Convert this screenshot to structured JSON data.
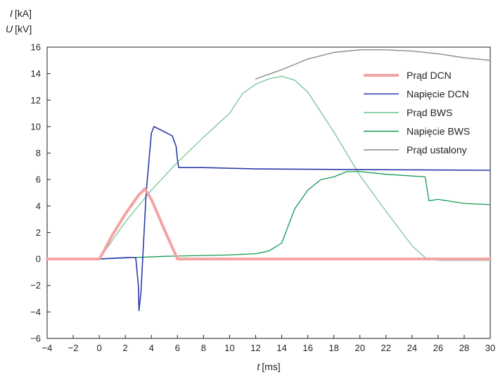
{
  "chart_data": {
    "type": "line",
    "title": "",
    "xlabel": "t [ms]",
    "xlabel_var": "t",
    "xlabel_unit": "[ms]",
    "ylabel_lines": [
      "I [kA]",
      "U [kV]"
    ],
    "ylabel_vars": [
      "I",
      "U"
    ],
    "ylabel_units": [
      "[kA]",
      "[kV]"
    ],
    "xlim": [
      -4,
      30
    ],
    "ylim": [
      -6,
      16
    ],
    "xticks": [
      -4,
      -2,
      0,
      2,
      4,
      6,
      8,
      10,
      12,
      14,
      16,
      18,
      20,
      22,
      24,
      26,
      28,
      30
    ],
    "yticks": [
      -6,
      -4,
      -2,
      0,
      2,
      4,
      6,
      8,
      10,
      12,
      14,
      16
    ],
    "grid": false,
    "legend_position": "top-right",
    "series": [
      {
        "name": "Prąd DCN",
        "color": "#f4a3a3",
        "x": [
          -4,
          0,
          0.3,
          1,
          2,
          3,
          3.5,
          4,
          5,
          6,
          10,
          20,
          30
        ],
        "y": [
          0,
          0,
          0.5,
          1.8,
          3.4,
          4.8,
          5.3,
          4.5,
          2.2,
          0,
          0,
          0,
          0
        ]
      },
      {
        "name": "Napięcie DCN",
        "color": "#2b3ba8",
        "x": [
          -4,
          0,
          2,
          2.8,
          3,
          3.05,
          3.2,
          3.6,
          4,
          4.2,
          5,
          5.6,
          5.9,
          6.0,
          6.1,
          8,
          12,
          20,
          30
        ],
        "y": [
          0,
          0,
          0.1,
          0.1,
          -2,
          -3.9,
          -2.5,
          5,
          9.5,
          10,
          9.6,
          9.3,
          8.5,
          7.5,
          6.9,
          6.9,
          6.8,
          6.75,
          6.7
        ]
      },
      {
        "name": "Prąd BWS",
        "color": "#6cc08f",
        "x": [
          -4,
          0,
          2,
          4,
          6,
          8,
          10,
          11,
          12,
          13,
          14,
          15,
          16,
          18,
          20,
          22,
          24,
          25,
          26,
          28,
          30
        ],
        "y": [
          0,
          0,
          2.8,
          5.2,
          7.3,
          9.2,
          11,
          12.5,
          13.2,
          13.6,
          13.8,
          13.5,
          12.6,
          9.6,
          6.3,
          3.6,
          1,
          0.1,
          -0.1,
          -0.1,
          -0.1
        ]
      },
      {
        "name": "Napięcie BWS",
        "color": "#139a55",
        "x": [
          -4,
          0,
          5,
          10,
          12,
          13,
          14,
          14.5,
          15,
          16,
          17,
          18,
          19,
          20,
          22,
          25,
          25.3,
          26,
          28,
          30
        ],
        "y": [
          0,
          0,
          0.2,
          0.3,
          0.4,
          0.6,
          1.2,
          2.5,
          3.8,
          5.2,
          6,
          6.2,
          6.6,
          6.6,
          6.4,
          6.2,
          4.4,
          4.5,
          4.2,
          4.1
        ]
      },
      {
        "name": "Prąd ustalony",
        "color": "#8a8a8a",
        "x": [
          12,
          14,
          15,
          16,
          18,
          20,
          22,
          24,
          26,
          28,
          30
        ],
        "y": [
          13.6,
          14.3,
          14.7,
          15.1,
          15.6,
          15.8,
          15.8,
          15.7,
          15.5,
          15.2,
          15
        ]
      }
    ]
  }
}
